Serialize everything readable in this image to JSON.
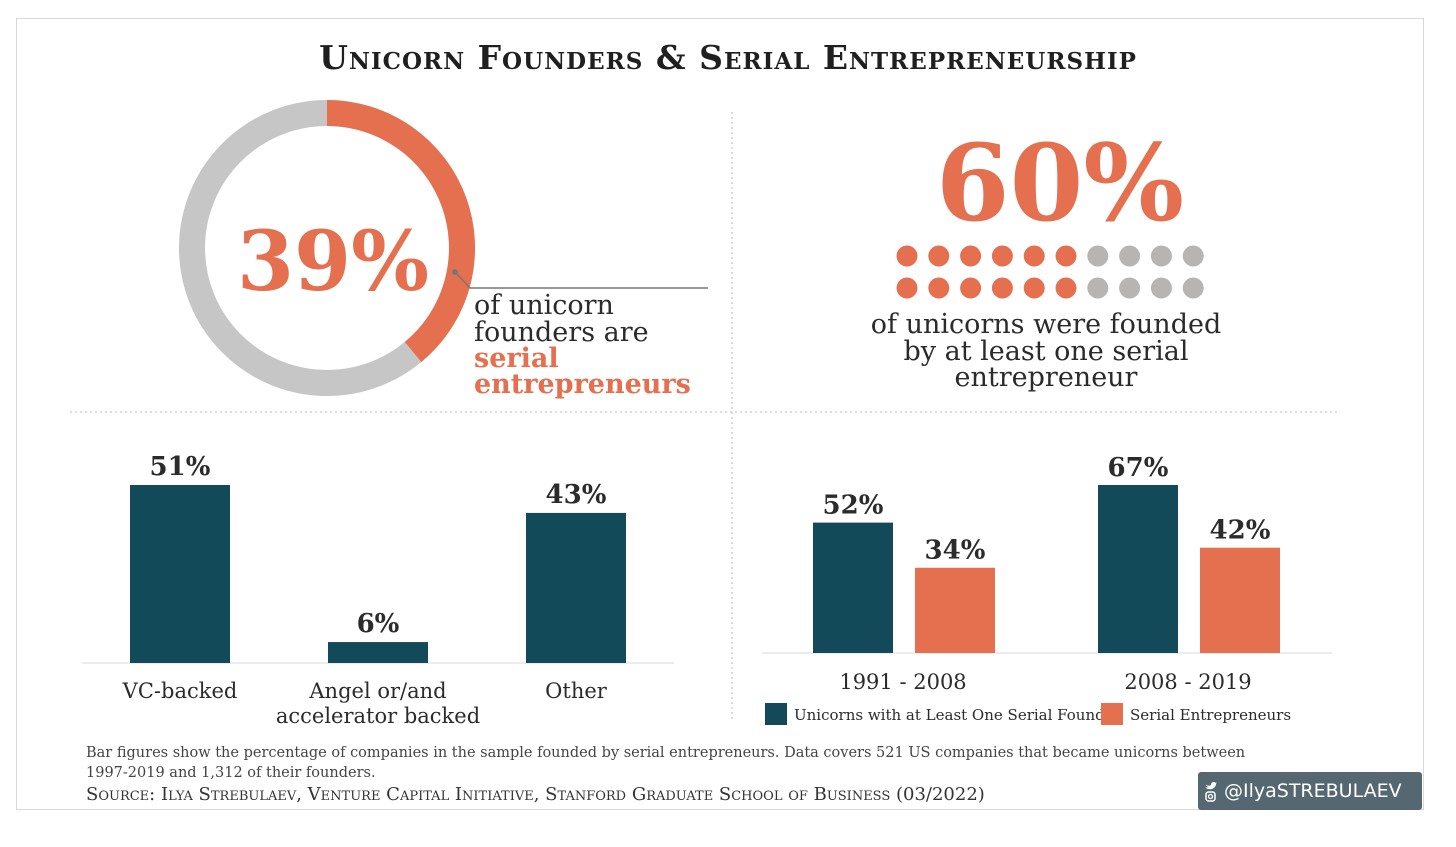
{
  "title": "Unicorn Founders & Serial Entrepreneurship",
  "colors": {
    "orange": "#e4704f",
    "teal": "#134a5a",
    "gray": "#c6c6c6",
    "dot_gray": "#b7b4b4",
    "text": "#2b2b2b"
  },
  "chart_data": [
    {
      "type": "pie",
      "value_label": "39%",
      "slices": [
        {
          "name": "serial entrepreneurs",
          "value": 39
        },
        {
          "name": "other",
          "value": 61
        }
      ],
      "caption": [
        "of unicorn",
        "founders are"
      ],
      "caption_highlight": [
        "serial",
        "entrepreneurs"
      ]
    },
    {
      "type": "pictogram",
      "value_label": "60%",
      "filled": 12,
      "total": 20,
      "caption": [
        "of unicorns were founded",
        "by at least one serial",
        "entrepreneur"
      ]
    },
    {
      "type": "bar",
      "categories": [
        "VC-backed",
        "Angel or/and accelerator backed",
        "Other"
      ],
      "category_lines": [
        [
          "VC-backed"
        ],
        [
          "Angel or/and",
          "accelerator backed"
        ],
        [
          "Other"
        ]
      ],
      "values": [
        51,
        6,
        43
      ],
      "labels": [
        "51%",
        "6%",
        "43%"
      ]
    },
    {
      "type": "bar",
      "categories": [
        "1991 - 2008",
        "2008 - 2019"
      ],
      "series": [
        {
          "name": "Unicorns with at Least One Serial Founder",
          "values": [
            52,
            67
          ],
          "labels": [
            "52%",
            "67%"
          ]
        },
        {
          "name": "Serial Entrepreneurs",
          "values": [
            34,
            42
          ],
          "labels": [
            "34%",
            "42%"
          ]
        }
      ],
      "legend": "bottom"
    }
  ],
  "footnote": "Bar figures show the percentage of companies in the sample founded by serial entrepreneurs. Data covers 521 US companies that became unicorns between 1997-2019 and 1,312 of their founders.",
  "source": "Source: Ilya Strebulaev, Venture Capital Initiative, Stanford Graduate School of Business (03/2022)",
  "social_handle": "@IlyaSTREBULAEV",
  "social_icons": [
    "twitter-icon",
    "instagram-icon"
  ]
}
